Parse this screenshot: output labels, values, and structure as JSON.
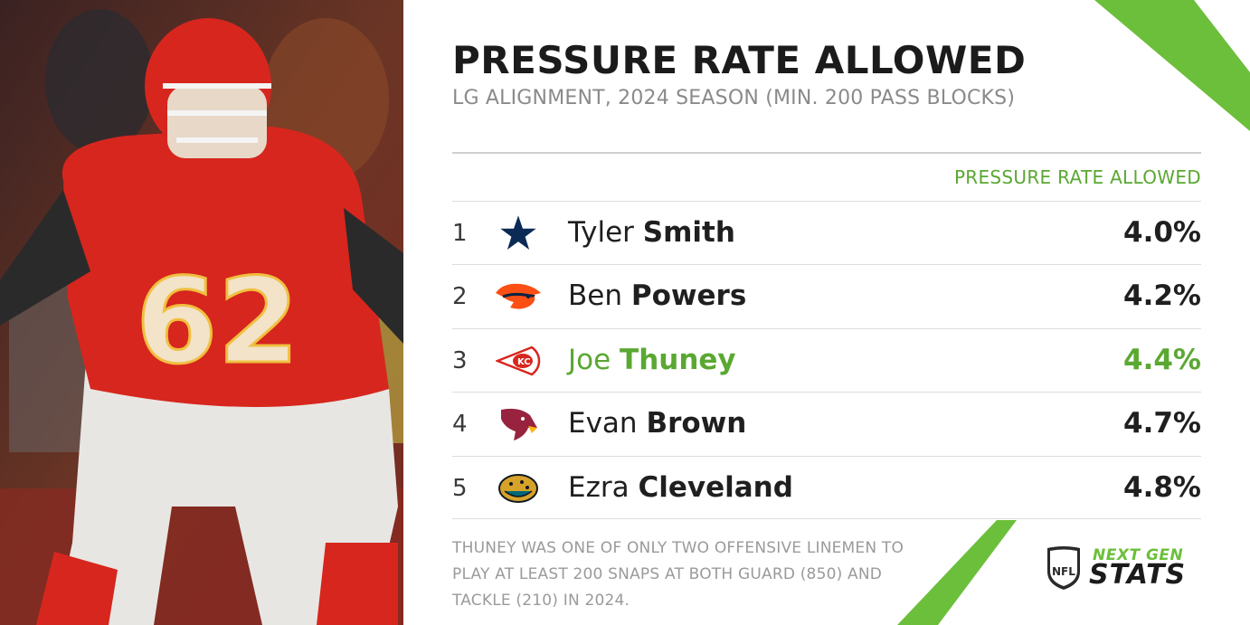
{
  "header": {
    "title": "PRESSURE RATE ALLOWED",
    "subtitle": "LG ALIGNMENT, 2024 SEASON (MIN. 200 PASS BLOCKS)",
    "column_header": "PRESSURE RATE ALLOWED"
  },
  "rows": [
    {
      "rank": "1",
      "first": "Tyler",
      "last": "Smith",
      "value": "4.0%",
      "team_icon": "cowboys-star-icon",
      "highlight": false
    },
    {
      "rank": "2",
      "first": "Ben",
      "last": "Powers",
      "value": "4.2%",
      "team_icon": "broncos-icon",
      "highlight": false
    },
    {
      "rank": "3",
      "first": "Joe",
      "last": "Thuney",
      "value": "4.4%",
      "team_icon": "chiefs-arrowhead-icon",
      "highlight": true
    },
    {
      "rank": "4",
      "first": "Evan",
      "last": "Brown",
      "value": "4.7%",
      "team_icon": "cardinals-icon",
      "highlight": false
    },
    {
      "rank": "5",
      "first": "Ezra",
      "last": "Cleveland",
      "value": "4.8%",
      "team_icon": "jaguars-icon",
      "highlight": false
    }
  ],
  "footnote": "THUNEY WAS ONE OF ONLY TWO OFFENSIVE LINEMEN TO PLAY AT LEAST 200 SNAPS AT BOTH GUARD (850) AND TACKLE (210) IN 2024.",
  "photo": {
    "jersey_number": "62"
  },
  "brand": {
    "next": "NEXT GEN",
    "stats": "STATS",
    "nfl": "NFL"
  },
  "colors": {
    "accent_green": "#5aa832",
    "chiefs_red": "#d7261e",
    "text_dark": "#1f1f1f",
    "text_gray": "#8a8a8a"
  }
}
